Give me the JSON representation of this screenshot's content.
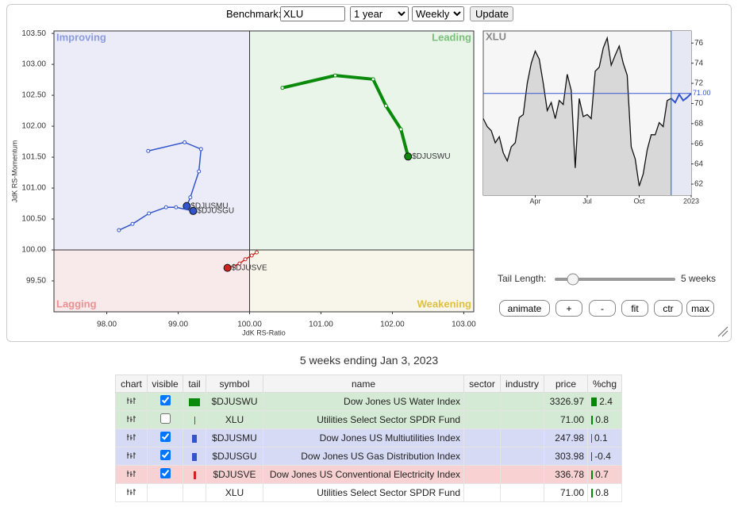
{
  "controls": {
    "benchmark_label": "Benchmark:",
    "benchmark": "XLU",
    "period": "1 year",
    "frequency": "Weekly",
    "update": "Update"
  },
  "chart_data": [
    {
      "type": "rrg",
      "x_label": "JdK RS-Ratio",
      "y_label": "JdK RS-Momentum",
      "quadrants": [
        {
          "label": "Improving",
          "color": "#8c9be0"
        },
        {
          "label": "Leading",
          "color": "#7cbf7c"
        },
        {
          "label": "Lagging",
          "color": "#ec9090"
        },
        {
          "label": "Weakening",
          "color": "#e0c040"
        }
      ],
      "xlim": [
        97.26,
        103.14
      ],
      "ylim": [
        99.0,
        103.54
      ],
      "xticks": [
        {
          "value": 98,
          "label": "98.00"
        },
        {
          "value": 99,
          "label": "99.00"
        },
        {
          "value": 100,
          "label": "100.00"
        },
        {
          "value": 101,
          "label": "101.00"
        },
        {
          "value": 102,
          "label": "102.00"
        },
        {
          "value": 103,
          "label": "103.00"
        }
      ],
      "yticks": [
        {
          "value": 99.5,
          "label": "99.50"
        },
        {
          "value": 100,
          "label": "100.00"
        },
        {
          "value": 100.5,
          "label": "100.50"
        },
        {
          "value": 101,
          "label": "101.00"
        },
        {
          "value": 101.5,
          "label": "101.50"
        },
        {
          "value": 102,
          "label": "102.00"
        },
        {
          "value": 102.5,
          "label": "102.50"
        },
        {
          "value": 103,
          "label": "103.00"
        },
        {
          "value": 103.5,
          "label": "103.50"
        }
      ],
      "series": [
        {
          "name": "$DJUSWU",
          "color": "#0a8a0a",
          "x": [
            100.46,
            101.2,
            101.73,
            101.91,
            102.12,
            102.22
          ],
          "values": [
            102.62,
            102.82,
            102.76,
            102.33,
            101.95,
            101.51
          ]
        },
        {
          "name": "$DJUSMU",
          "color": "#3355cc",
          "x": [
            98.58,
            99.09,
            99.32,
            99.29,
            99.17,
            99.12
          ],
          "values": [
            101.6,
            101.74,
            101.63,
            101.27,
            100.85,
            100.71
          ]
        },
        {
          "name": "$DJUSGU",
          "color": "#3355cc",
          "x": [
            98.17,
            98.36,
            98.59,
            98.83,
            98.97,
            99.21
          ],
          "values": [
            100.32,
            100.42,
            100.59,
            100.69,
            100.69,
            100.63
          ]
        },
        {
          "name": "$DJUSVE",
          "color": "#d02020",
          "x": [
            100.1,
            100.03,
            99.94,
            99.86,
            99.78,
            99.69
          ],
          "values": [
            99.96,
            99.91,
            99.85,
            99.78,
            99.74,
            99.71
          ]
        }
      ]
    },
    {
      "type": "line",
      "title": "XLU",
      "xlim": [
        0,
        52
      ],
      "ylim": [
        60.9,
        77.2
      ],
      "xticks": [
        {
          "value": 13,
          "label": "Apr"
        },
        {
          "value": 26,
          "label": "Jul"
        },
        {
          "value": 39,
          "label": "Oct"
        },
        {
          "value": 52,
          "label": "2023"
        }
      ],
      "yticks": [
        62,
        64,
        66,
        68,
        70,
        72,
        74,
        76
      ],
      "last_label": {
        "value": 71,
        "label": "71.00"
      },
      "series": [
        {
          "color": "#111111",
          "values": [
            68.5,
            67.7,
            67.3,
            66.1,
            66.7,
            65.1,
            64.3,
            65.7,
            66.1,
            68.6,
            68.9,
            72.0,
            74.0,
            75.2,
            74.4,
            72.0,
            69.3,
            70.1,
            68.5,
            70.3,
            69.9,
            72.9,
            71.3,
            63.6,
            70.5,
            68.7,
            68.9,
            68.5,
            73.2,
            73.6,
            75.5,
            76.5,
            73.8,
            74.8,
            75.7,
            74.0,
            72.8,
            65.7,
            64.5,
            61.8,
            63.0,
            65.4,
            66.9,
            66.9,
            68.1,
            67.7,
            70.3,
            70.5,
            null,
            null,
            null,
            null,
            null
          ]
        },
        {
          "color": "#3355cc",
          "values": [
            null,
            null,
            null,
            null,
            null,
            null,
            null,
            null,
            null,
            null,
            null,
            null,
            null,
            null,
            null,
            null,
            null,
            null,
            null,
            null,
            null,
            null,
            null,
            null,
            null,
            null,
            null,
            null,
            null,
            null,
            null,
            null,
            null,
            null,
            null,
            null,
            null,
            null,
            null,
            null,
            null,
            null,
            null,
            null,
            null,
            null,
            null,
            70.5,
            70.1,
            70.9,
            70.3,
            70.6,
            71.0
          ]
        }
      ]
    }
  ],
  "tail": {
    "label": "Tail Length:",
    "value": "5 weeks"
  },
  "buttons": [
    "animate",
    "+",
    "-",
    "fit",
    "ctr",
    "max"
  ],
  "caption": "5 weeks ending Jan 3, 2023",
  "table": {
    "headers": [
      "chart",
      "visible",
      "tail",
      "symbol",
      "name",
      "sector",
      "industry",
      "price",
      "%chg"
    ],
    "rows": [
      {
        "color": "#d4ead4",
        "visible": true,
        "tail_color": "#0a8a0a",
        "symbol": "$DJUSWU",
        "name": "Dow Jones US Water Index",
        "price": "3326.97",
        "chg": 2.4
      },
      {
        "color": "#d4ead4",
        "visible": false,
        "tail_color": "#0a8a0a",
        "symbol": "XLU",
        "name": "Utilities Select Sector SPDR Fund",
        "price": "71.00",
        "chg": 0.8
      },
      {
        "color": "#d6daf5",
        "visible": true,
        "tail_color": "#3355cc",
        "symbol": "$DJUSMU",
        "name": "Dow Jones US Multiutilities Index",
        "price": "247.98",
        "chg": 0.1
      },
      {
        "color": "#d6daf5",
        "visible": true,
        "tail_color": "#3355cc",
        "symbol": "$DJUSGU",
        "name": "Dow Jones US Gas Distribution Index",
        "price": "303.98",
        "chg": -0.4
      },
      {
        "color": "#f8d2d2",
        "visible": true,
        "tail_color": "#d02020",
        "symbol": "$DJUSVE",
        "name": "Dow Jones US Conventional Electricity Index",
        "price": "336.78",
        "chg": 0.7
      },
      {
        "color": "#ffffff",
        "visible": null,
        "symbol": "XLU",
        "name": "Utilities Select Sector SPDR Fund",
        "price": "71.00",
        "chg": 0.8
      }
    ]
  }
}
